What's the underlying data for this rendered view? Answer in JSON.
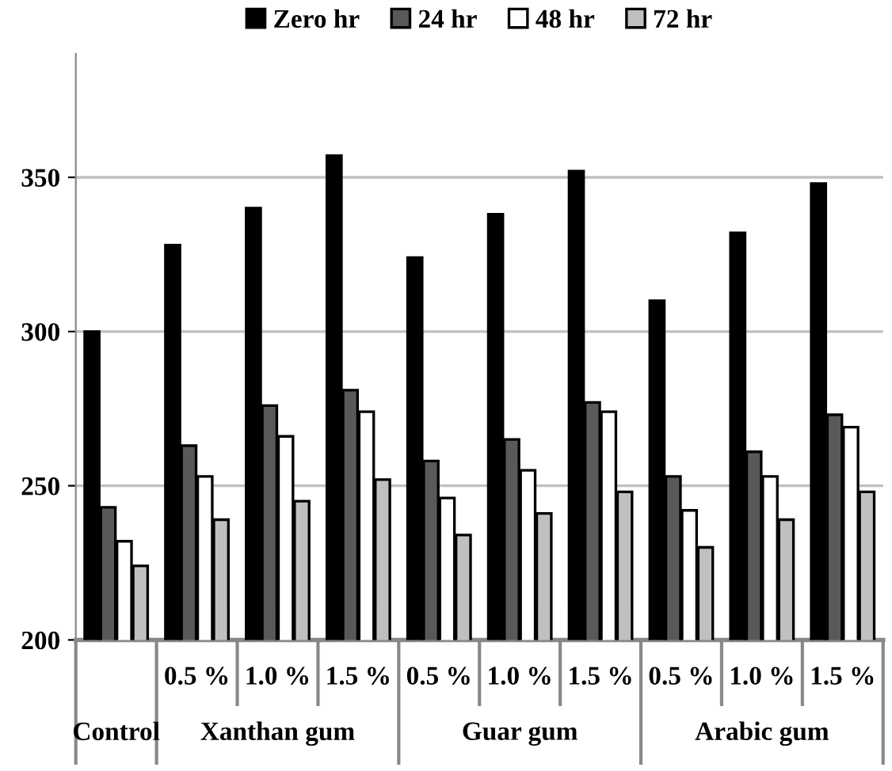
{
  "chart_data": {
    "type": "bar",
    "categories": [
      null,
      "0.5 %",
      "1.0 %",
      "1.5 %",
      "0.5 %",
      "1.0 %",
      "1.5 %",
      "0.5 %",
      "1.0 %",
      "1.5 %"
    ],
    "series": [
      {
        "name": "Zero hr",
        "color": "#000000",
        "values": [
          300,
          328,
          340,
          357,
          324,
          338,
          352,
          310,
          332,
          348
        ]
      },
      {
        "name": "24 hr",
        "color": "#595959",
        "values": [
          243,
          263,
          276,
          281,
          258,
          265,
          277,
          253,
          261,
          273
        ]
      },
      {
        "name": "48 hr",
        "color": "#ffffff",
        "values": [
          232,
          253,
          266,
          274,
          246,
          255,
          274,
          242,
          253,
          269
        ]
      },
      {
        "name": "72 hr",
        "color": "#c0c0c0",
        "values": [
          224,
          239,
          245,
          252,
          234,
          241,
          248,
          230,
          239,
          248
        ]
      }
    ],
    "ylim": [
      200,
      390
    ],
    "yticks": [
      200,
      250,
      300,
      350
    ],
    "grid": "y",
    "legend": "top",
    "annotations": [
      "Control",
      "Xanthan gum",
      "Guar gum",
      "Arabic gum"
    ]
  }
}
